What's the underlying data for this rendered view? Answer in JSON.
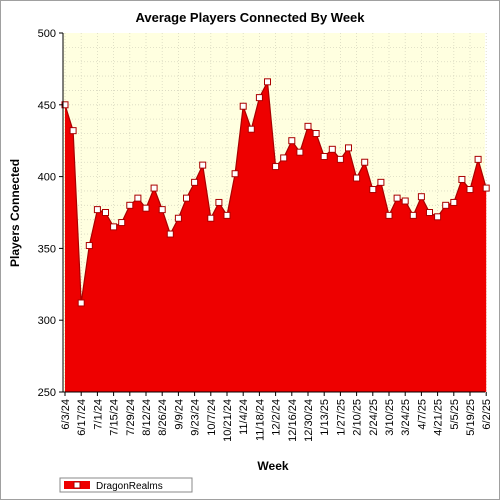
{
  "chart_data": {
    "type": "area",
    "title": "Average Players Connected By Week",
    "xlabel": "Week",
    "ylabel": "Players Connected",
    "ylim": [
      250,
      500
    ],
    "yticks": [
      250,
      300,
      350,
      400,
      450,
      500
    ],
    "grid": true,
    "legend_position": "bottom-left",
    "colors": {
      "fill": "#ee0000",
      "line": "#aa0000",
      "marker_fill": "#ffffff",
      "plot_bg": "#ffffe0",
      "grid": "#d8d8c0"
    },
    "x_tick_labels": [
      "6/3/24",
      "6/17/24",
      "7/1/24",
      "7/15/24",
      "7/29/24",
      "8/12/24",
      "8/26/24",
      "9/9/24",
      "9/23/24",
      "10/7/24",
      "10/21/24",
      "11/4/24",
      "11/18/24",
      "12/2/24",
      "12/16/24",
      "12/30/24",
      "1/13/25",
      "1/27/25",
      "2/10/25",
      "2/24/25",
      "3/10/25",
      "3/24/25",
      "4/7/25",
      "4/21/25",
      "5/5/25",
      "5/19/25",
      "6/2/25"
    ],
    "series": [
      {
        "name": "DragonRealms",
        "x": [
          "6/3/24",
          "6/10/24",
          "6/17/24",
          "6/24/24",
          "7/1/24",
          "7/8/24",
          "7/15/24",
          "7/22/24",
          "7/29/24",
          "8/5/24",
          "8/12/24",
          "8/19/24",
          "8/26/24",
          "9/2/24",
          "9/9/24",
          "9/16/24",
          "9/23/24",
          "9/30/24",
          "10/7/24",
          "10/14/24",
          "10/21/24",
          "10/28/24",
          "11/4/24",
          "11/11/24",
          "11/18/24",
          "11/25/24",
          "12/2/24",
          "12/9/24",
          "12/16/24",
          "12/23/24",
          "12/30/24",
          "1/6/25",
          "1/13/25",
          "1/20/25",
          "1/27/25",
          "2/3/25",
          "2/10/25",
          "2/17/25",
          "2/24/25",
          "3/3/25",
          "3/10/25",
          "3/17/25",
          "3/24/25",
          "3/31/25",
          "4/7/25",
          "4/14/25",
          "4/21/25",
          "4/28/25",
          "5/5/25",
          "5/12/25",
          "5/19/25",
          "5/26/25",
          "6/2/25"
        ],
        "values": [
          450,
          432,
          312,
          352,
          377,
          375,
          365,
          368,
          380,
          385,
          378,
          392,
          377,
          360,
          371,
          385,
          396,
          408,
          371,
          382,
          373,
          402,
          449,
          433,
          455,
          466,
          407,
          413,
          425,
          417,
          435,
          430,
          414,
          419,
          412,
          420,
          399,
          410,
          391,
          396,
          373,
          385,
          383,
          373,
          386,
          375,
          372,
          380,
          382,
          398,
          391,
          412,
          392
        ]
      }
    ]
  }
}
